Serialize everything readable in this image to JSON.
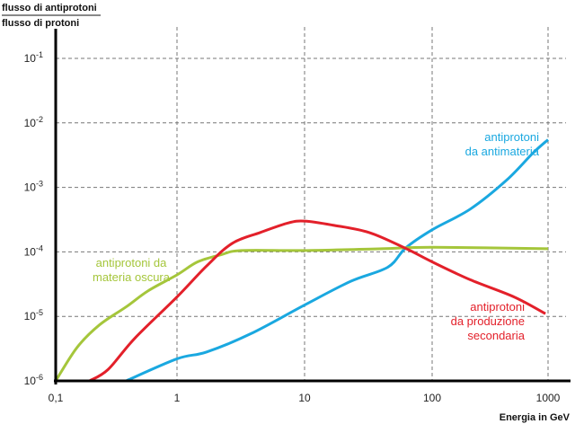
{
  "chart_data": {
    "type": "line",
    "title": "",
    "ylabel_numerator": "flusso di antiprotoni",
    "ylabel_denominator": "flusso di protoni",
    "xlabel": "Energia in GeV",
    "xscale": "log",
    "yscale": "log",
    "xlim": [
      0.1,
      1000
    ],
    "ylim": [
      1e-06,
      0.1
    ],
    "grid": true,
    "x_ticks": [
      {
        "value": 0.1,
        "label": "0,1"
      },
      {
        "value": 1,
        "label": "1"
      },
      {
        "value": 10,
        "label": "10"
      },
      {
        "value": 100,
        "label": "100"
      },
      {
        "value": 1000,
        "label": "1000"
      }
    ],
    "y_ticks": [
      {
        "value": 0.1,
        "base": "10",
        "exp": "-1"
      },
      {
        "value": 0.01,
        "base": "10",
        "exp": "-2"
      },
      {
        "value": 0.001,
        "base": "10",
        "exp": "-3"
      },
      {
        "value": 0.0001,
        "base": "10",
        "exp": "-4"
      },
      {
        "value": 1e-05,
        "base": "10",
        "exp": "-5"
      },
      {
        "value": 1e-06,
        "base": "10",
        "exp": "-6"
      }
    ],
    "series": [
      {
        "name": "antiprotoni da antimateria",
        "label_lines": [
          "antiprotoni",
          "da antimateria"
        ],
        "color": "#1aa8e0",
        "x": [
          0.38,
          1,
          1.7,
          3.8,
          10,
          23,
          45,
          62,
          100,
          213,
          440,
          740,
          1000
        ],
        "y": [
          1e-06,
          2.2e-06,
          2.8e-06,
          5.4e-06,
          1.5e-05,
          3.5e-05,
          5.8e-05,
          0.000115,
          0.00022,
          0.00046,
          0.0013,
          0.0034,
          0.0055
        ]
      },
      {
        "name": "antiprotoni da materia oscura",
        "label_lines": [
          "antiprotoni da",
          "materia oscura"
        ],
        "color": "#a5c63b",
        "x": [
          0.1,
          0.15,
          0.23,
          0.38,
          0.58,
          1,
          1.45,
          2.2,
          3.2,
          10,
          40,
          100,
          1000
        ],
        "y": [
          1e-06,
          3.3e-06,
          7.4e-06,
          1.4e-05,
          2.5e-05,
          4.4e-05,
          7e-05,
          9e-05,
          0.000105,
          0.000105,
          0.000112,
          0.000118,
          0.000112
        ]
      },
      {
        "name": "antiprotoni da produzione secondaria",
        "label_lines": [
          "antiprotoni",
          "da produzione",
          "secondaria"
        ],
        "color": "#e3202a",
        "x": [
          0.19,
          0.27,
          0.45,
          1,
          1.7,
          2.7,
          4.5,
          7.4,
          10,
          16.6,
          32,
          61,
          100,
          213,
          510,
          950
        ],
        "y": [
          1e-06,
          1.5e-06,
          4.6e-06,
          2e-05,
          6e-05,
          0.000135,
          0.0002,
          0.00028,
          0.0003,
          0.00026,
          0.0002,
          0.000115,
          7e-05,
          3.7e-05,
          2e-05,
          1.1e-05
        ]
      }
    ]
  }
}
